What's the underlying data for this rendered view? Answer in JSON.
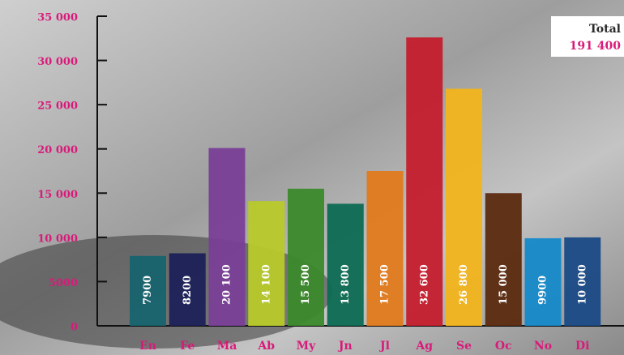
{
  "chart_data": {
    "type": "bar",
    "categories": [
      "En",
      "Fe",
      "Ma",
      "Ab",
      "My",
      "Jn",
      "Jl",
      "Ag",
      "Se",
      "Oc",
      "No",
      "Di"
    ],
    "values": [
      7900,
      8200,
      20100,
      14100,
      15500,
      13800,
      17500,
      32600,
      26800,
      15000,
      9900,
      10000
    ],
    "value_labels": [
      "7900",
      "8200",
      "20 100",
      "14 100",
      "15 500",
      "13 800",
      "17 500",
      "32 600",
      "26 800",
      "15 000",
      "9900",
      "10 000"
    ],
    "colors": [
      "#17646f",
      "#1d2159",
      "#7a3f96",
      "#b7c92a",
      "#3b8a2b",
      "#0d6a52",
      "#e07a1c",
      "#c41e2d",
      "#f1b41b",
      "#5b2a0f",
      "#1589c9",
      "#1b4a86"
    ],
    "ylim": [
      0,
      35000
    ],
    "yticks": [
      0,
      5000,
      {
        "value": 10000,
        "label": "10 000"
      },
      {
        "value": 15000,
        "label": "15 000"
      },
      {
        "value": 20000,
        "label": "20 000"
      },
      {
        "value": 25000,
        "label": "25 000"
      },
      {
        "value": 30000,
        "label": "30 000"
      },
      {
        "value": 35000,
        "label": "35 000"
      }
    ],
    "total_title": "Total",
    "total_value": "191 400"
  }
}
